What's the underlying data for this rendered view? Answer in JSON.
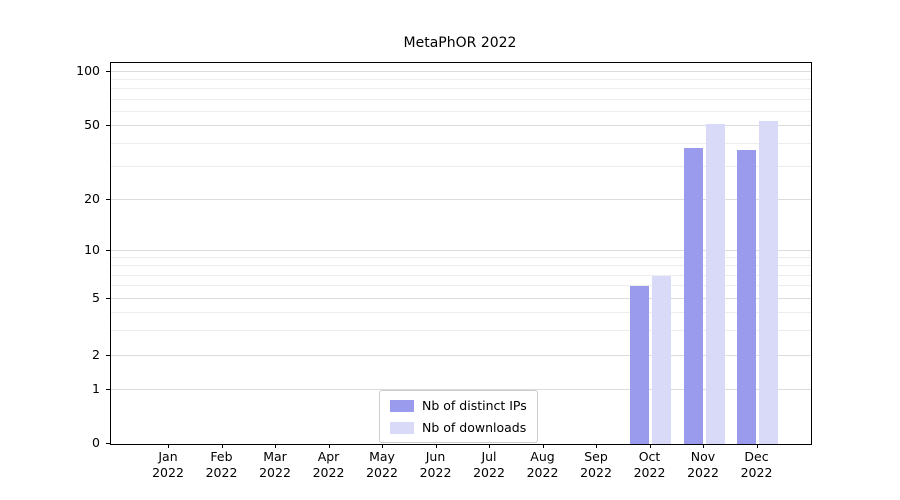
{
  "chart_data": {
    "type": "bar",
    "title": "MetaPhOR 2022",
    "x_months": [
      "Jan",
      "Feb",
      "Mar",
      "Apr",
      "May",
      "Jun",
      "Jul",
      "Aug",
      "Sep",
      "Oct",
      "Nov",
      "Dec"
    ],
    "x_year": "2022",
    "series": [
      {
        "name": "Nb of distinct IPs",
        "color": "#9b9bee",
        "values": [
          0,
          0,
          0,
          0,
          0,
          0,
          0,
          0,
          0,
          6,
          38,
          37
        ]
      },
      {
        "name": "Nb of downloads",
        "color": "#d9d9f8",
        "values": [
          0,
          0,
          0,
          0,
          0,
          0,
          0,
          0,
          0,
          7,
          51,
          53
        ]
      }
    ],
    "yscale": "symlog",
    "yticks": [
      0,
      1,
      2,
      5,
      10,
      20,
      50,
      100
    ],
    "minor_gridlines": [
      3,
      4,
      6,
      7,
      8,
      9,
      30,
      40,
      60,
      70,
      80,
      90
    ],
    "ylim": [
      0,
      110
    ],
    "grid": "horizontal",
    "legend_position": "inside-bottom-center"
  },
  "colors": {
    "bar_distinct_ips": "#9b9bee",
    "bar_downloads": "#d9d9f8",
    "grid_major": "#dcdcdc",
    "grid_minor": "#ededed",
    "spine": "#000000",
    "background": "#ffffff"
  }
}
